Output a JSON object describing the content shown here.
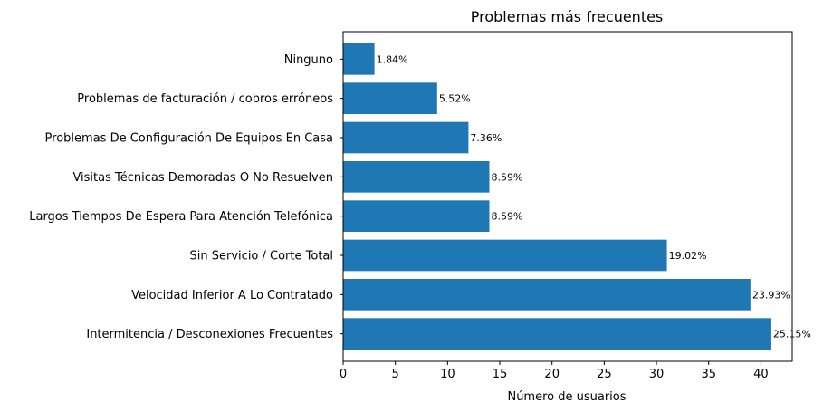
{
  "chart_data": {
    "type": "bar",
    "orientation": "horizontal",
    "title": "Problemas más frecuentes",
    "xlabel": "Número de usuarios",
    "ylabel": "",
    "xlim": [
      0,
      43
    ],
    "xticks": [
      0,
      5,
      10,
      15,
      20,
      25,
      30,
      35,
      40
    ],
    "grid": false,
    "bar_color": "#1f77b4",
    "categories": [
      "Ninguno",
      "Problemas de facturación / cobros erróneos",
      "Problemas De Configuración De Equipos En Casa",
      "Visitas Técnicas Demoradas O No Resuelven",
      "Largos Tiempos De Espera Para Atención Telefónica",
      "Sin Servicio / Corte Total",
      "Velocidad Inferior A Lo Contratado",
      "Intermitencia / Desconexiones Frecuentes"
    ],
    "values": [
      3,
      9,
      12,
      14,
      14,
      31,
      39,
      41
    ],
    "data_labels": [
      "1.84%",
      "5.52%",
      "7.36%",
      "8.59%",
      "8.59%",
      "19.02%",
      "23.93%",
      "25.15%"
    ]
  }
}
